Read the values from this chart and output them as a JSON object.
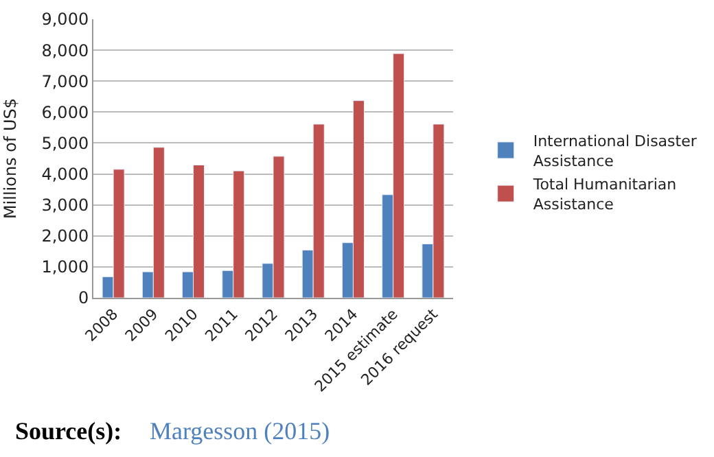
{
  "chart_data": {
    "type": "bar",
    "ylabel": "Millions of US$",
    "categories": [
      "2008",
      "2009",
      "2010",
      "2011",
      "2012",
      "2013",
      "2014",
      "2015 estimate",
      "2016 request"
    ],
    "series": [
      {
        "name": "International Disaster Assistance",
        "color": "#4f81bd",
        "values": [
          680,
          840,
          840,
          880,
          1110,
          1540,
          1780,
          3330,
          1740
        ]
      },
      {
        "name": "Total Humanitarian Assistance",
        "color": "#c0504d",
        "values": [
          4150,
          4860,
          4290,
          4100,
          4570,
          5610,
          6370,
          7890,
          5610
        ]
      }
    ],
    "ylim": [
      0,
      9000
    ],
    "yticks": [
      0,
      {
        "value": 1000,
        "label": "1,000"
      },
      {
        "value": 2000,
        "label": "2,000"
      },
      {
        "value": 3000,
        "label": "3,000"
      },
      {
        "value": 4000,
        "label": "4,000"
      },
      {
        "value": 5000,
        "label": "5,000"
      },
      {
        "value": 6000,
        "label": "6,000"
      },
      {
        "value": 7000,
        "label": "7,000"
      },
      {
        "value": 8000,
        "label": "8,000"
      },
      {
        "value": 9000,
        "label": "9,000"
      }
    ],
    "grid": "y",
    "legend": "right",
    "annotations": [
      "Source(s):",
      "Margesson (2015)"
    ]
  }
}
